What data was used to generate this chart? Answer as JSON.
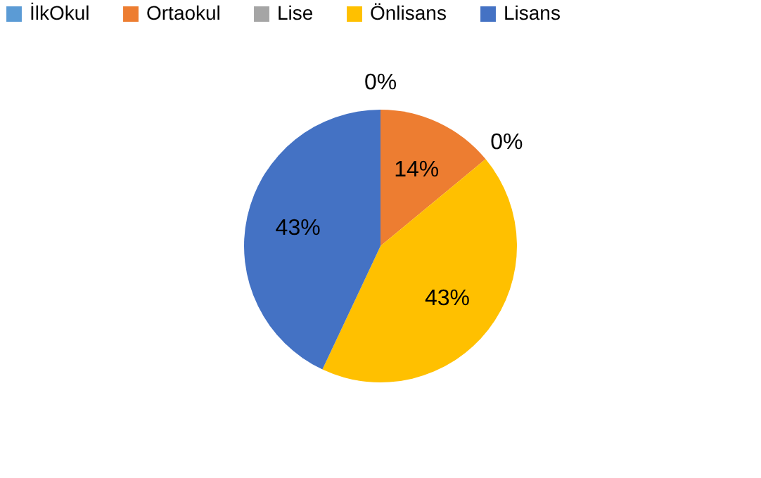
{
  "chart_data": {
    "type": "pie",
    "categories": [
      "İlkOkul",
      "Ortaokul",
      "Lise",
      "Önlisans",
      "Lisans"
    ],
    "values": [
      0,
      14,
      0,
      43,
      43
    ],
    "colors": [
      "#5b9bd5",
      "#ed7d31",
      "#a5a5a5",
      "#ffc000",
      "#4472c4"
    ],
    "value_labels": [
      "0%",
      "14%",
      "0%",
      "43%",
      "43%"
    ],
    "legend": "top"
  }
}
